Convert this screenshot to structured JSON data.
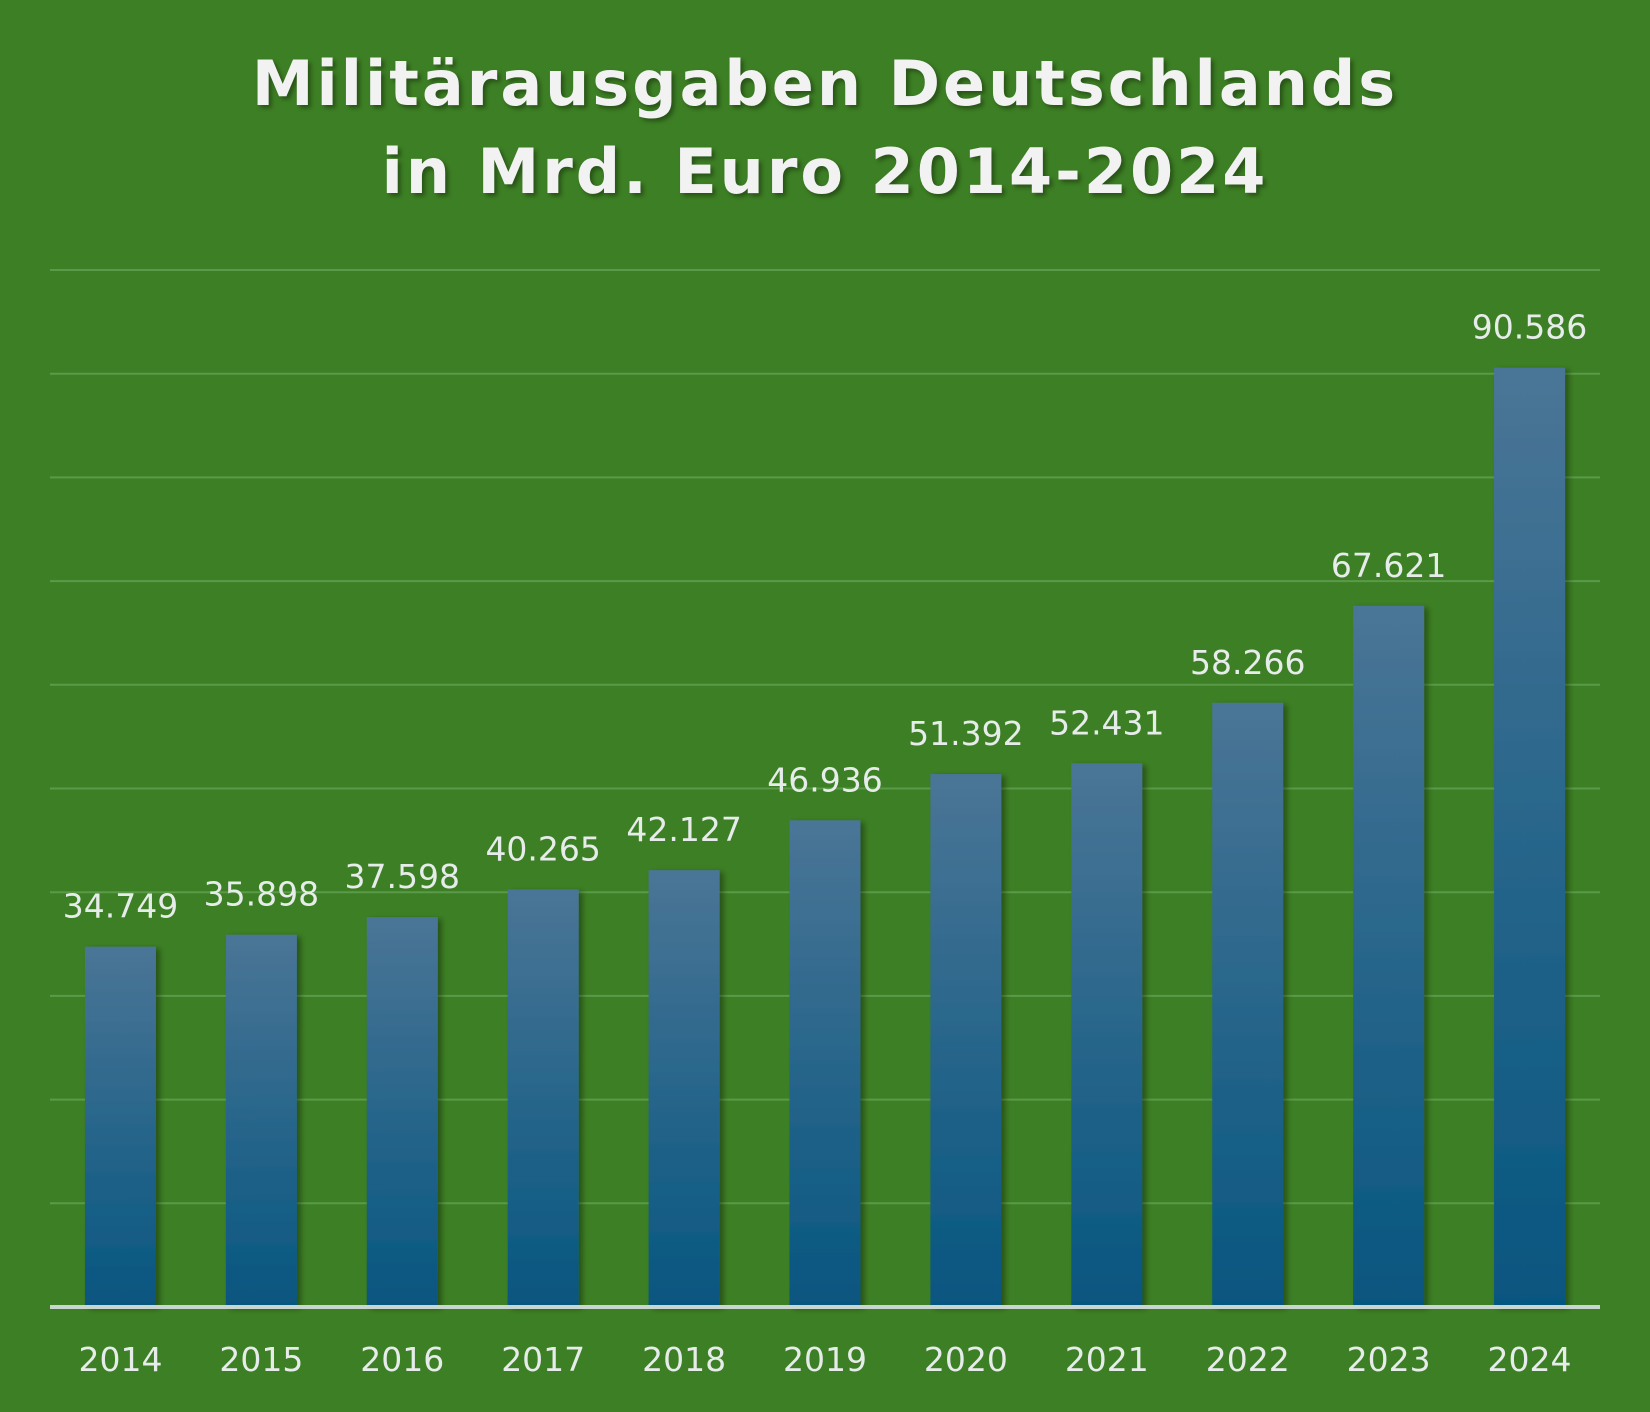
{
  "chart_data": {
    "type": "bar",
    "title_lines": [
      "Militärausgaben Deutschlands",
      "in Mrd. Euro 2014-2024"
    ],
    "categories": [
      "2014",
      "2015",
      "2016",
      "2017",
      "2018",
      "2019",
      "2020",
      "2021",
      "2022",
      "2023",
      "2024"
    ],
    "values": [
      34.749,
      35.898,
      37.598,
      40.265,
      42.127,
      46.936,
      51.392,
      52.431,
      58.266,
      67.621,
      90.586
    ],
    "value_labels": [
      "34.749",
      "35.898",
      "37.598",
      "40.265",
      "42.127",
      "46.936",
      "51.392",
      "52.431",
      "58.266",
      "67.621",
      "90.586"
    ],
    "ylim": [
      0,
      100
    ],
    "grid": true,
    "y_tick_labels_shown": false,
    "legend": "none"
  },
  "colors": {
    "background": "#3d7f24",
    "bar_top": "#4a7596",
    "bar_bottom": "#065680",
    "gridline": "#5a9a48",
    "axis": "#c9d6cf",
    "text": "#e6ecea"
  }
}
